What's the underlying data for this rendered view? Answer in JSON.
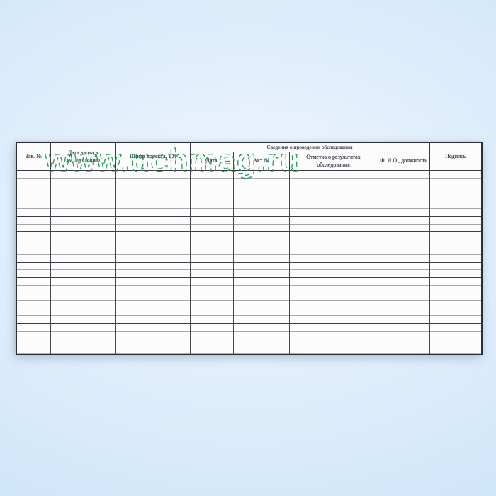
{
  "watermark": {
    "text": "www.uchmag.ru",
    "color": "#14984e"
  },
  "table": {
    "header": {
      "col_serial": "Зав. №",
      "col_commission_date": "Дата ввода в эксплуатацию",
      "col_project_code": "Шифр проекта, ТУ",
      "survey_group": "Сведения о проведении обследования",
      "col_date": "Дата",
      "col_act_no": "Акт №",
      "col_result_note": "Отметка о результатах обследования",
      "col_name_position": "Ф. И.О., должность",
      "col_signature": "Подпись"
    },
    "body": {
      "row_count": 24,
      "column_count": 8
    }
  }
}
